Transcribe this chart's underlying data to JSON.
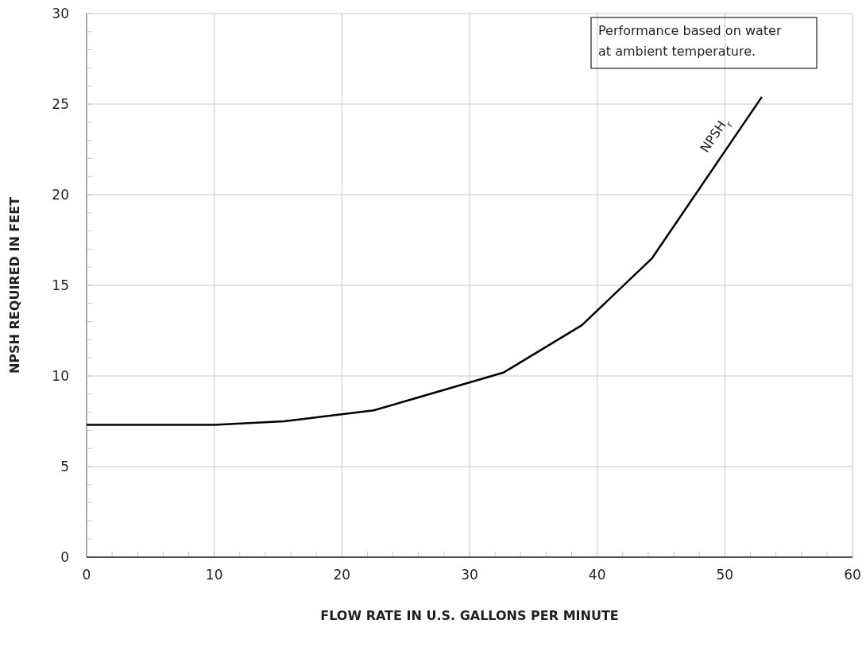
{
  "chart_data": {
    "type": "line",
    "xlabel": "FLOW RATE IN U.S. GALLONS PER MINUTE",
    "ylabel": "NPSH REQUIRED IN FEET",
    "x": [
      0,
      10,
      15.5,
      22.5,
      32.7,
      38.8,
      44.3,
      52.9
    ],
    "series": [
      {
        "name": "NPSH$_{r}$",
        "color": "#000000",
        "values": [
          7.3,
          7.3,
          7.5,
          8.1,
          10.2,
          12.8,
          16.5,
          25.4
        ]
      }
    ],
    "xlim": [
      0,
      60
    ],
    "ylim": [
      0,
      30
    ],
    "xticks": [
      0,
      {
        "value": 2,
        "label": null
      },
      {
        "value": 4,
        "label": null
      },
      {
        "value": 6,
        "label": null
      },
      {
        "value": 8,
        "label": null
      },
      10,
      {
        "value": 12,
        "label": null
      },
      {
        "value": 14,
        "label": null
      },
      {
        "value": 16,
        "label": null
      },
      {
        "value": 18,
        "label": null
      },
      20,
      {
        "value": 22,
        "label": null
      },
      {
        "value": 24,
        "label": null
      },
      {
        "value": 26,
        "label": null
      },
      {
        "value": 28,
        "label": null
      },
      30,
      {
        "value": 32,
        "label": null
      },
      {
        "value": 34,
        "label": null
      },
      {
        "value": 36,
        "label": null
      },
      {
        "value": 38,
        "label": null
      },
      40,
      {
        "value": 42,
        "label": null
      },
      {
        "value": 44,
        "label": null
      },
      {
        "value": 46,
        "label": null
      },
      {
        "value": 48,
        "label": null
      },
      50,
      {
        "value": 52,
        "label": null
      },
      {
        "value": 54,
        "label": null
      },
      {
        "value": 56,
        "label": null
      },
      {
        "value": 58,
        "label": null
      },
      60
    ],
    "yticks": [
      0,
      {
        "value": 1,
        "label": null
      },
      {
        "value": 2,
        "label": null
      },
      {
        "value": 3,
        "label": null
      },
      {
        "value": 4,
        "label": null
      },
      5,
      {
        "value": 6,
        "label": null
      },
      {
        "value": 7,
        "label": null
      },
      {
        "value": 8,
        "label": null
      },
      {
        "value": 9,
        "label": null
      },
      10,
      {
        "value": 11,
        "label": null
      },
      {
        "value": 12,
        "label": null
      },
      {
        "value": 13,
        "label": null
      },
      {
        "value": 14,
        "label": null
      },
      15,
      {
        "value": 16,
        "label": null
      },
      {
        "value": 17,
        "label": null
      },
      {
        "value": 18,
        "label": null
      },
      {
        "value": 19,
        "label": null
      },
      20,
      {
        "value": 21,
        "label": null
      },
      {
        "value": 22,
        "label": null
      },
      {
        "value": 23,
        "label": null
      },
      {
        "value": 24,
        "label": null
      },
      25,
      {
        "value": 26,
        "label": null
      },
      {
        "value": 27,
        "label": null
      },
      {
        "value": 28,
        "label": null
      },
      {
        "value": 29,
        "label": null
      },
      30
    ],
    "grid": true,
    "annotations": [
      "Performance based on water at ambient temperature."
    ]
  }
}
